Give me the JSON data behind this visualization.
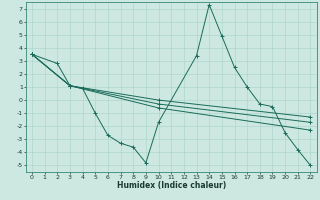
{
  "xlabel": "Humidex (Indice chaleur)",
  "bg_color": "#cce8e0",
  "line_color": "#1a6b5a",
  "grid_color": "#aad4c8",
  "ylim": [
    -5.5,
    7.5
  ],
  "xlim": [
    -0.5,
    22.5
  ],
  "yticks": [
    -5,
    -4,
    -3,
    -2,
    -1,
    0,
    1,
    2,
    3,
    4,
    5,
    6,
    7
  ],
  "xticks": [
    0,
    1,
    2,
    3,
    4,
    5,
    6,
    7,
    8,
    9,
    10,
    11,
    12,
    13,
    14,
    15,
    16,
    17,
    18,
    19,
    20,
    21,
    22
  ],
  "lines": [
    {
      "x": [
        0,
        2,
        3,
        4,
        5,
        6,
        7,
        8,
        9,
        10,
        13,
        14,
        15,
        16,
        17,
        18,
        19,
        20,
        21,
        22
      ],
      "y": [
        3.5,
        2.8,
        1.1,
        0.9,
        -1.0,
        -2.7,
        -3.3,
        -3.6,
        -4.8,
        -1.7,
        3.4,
        7.3,
        4.9,
        2.5,
        1.0,
        -0.3,
        -0.5,
        -2.5,
        -3.8,
        -5.0
      ]
    },
    {
      "x": [
        0,
        3,
        10,
        22
      ],
      "y": [
        3.5,
        1.1,
        0.0,
        -1.3
      ]
    },
    {
      "x": [
        0,
        3,
        10,
        22
      ],
      "y": [
        3.5,
        1.1,
        -0.3,
        -1.7
      ]
    },
    {
      "x": [
        0,
        3,
        10,
        22
      ],
      "y": [
        3.5,
        1.1,
        -0.6,
        -2.3
      ]
    }
  ]
}
